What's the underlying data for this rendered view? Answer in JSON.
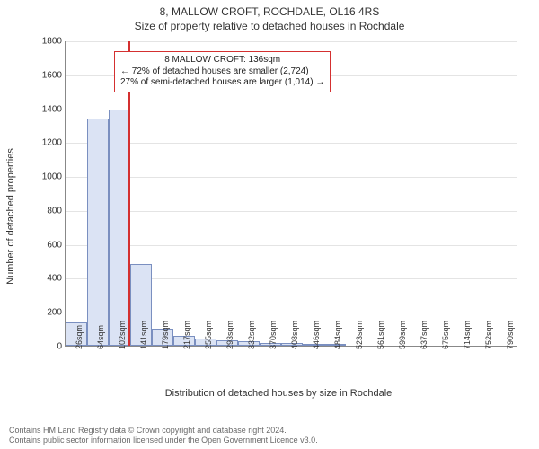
{
  "title": {
    "line1": "8, MALLOW CROFT, ROCHDALE, OL16 4RS",
    "line2": "Size of property relative to detached houses in Rochdale"
  },
  "chart": {
    "type": "histogram",
    "ylabel": "Number of detached properties",
    "xlabel": "Distribution of detached houses by size in Rochdale",
    "ylim": [
      0,
      1800
    ],
    "ytick_step": 200,
    "yticks": [
      0,
      200,
      400,
      600,
      800,
      1000,
      1200,
      1400,
      1600,
      1800
    ],
    "x_categories": [
      "26sqm",
      "64sqm",
      "102sqm",
      "141sqm",
      "179sqm",
      "217sqm",
      "255sqm",
      "293sqm",
      "332sqm",
      "370sqm",
      "408sqm",
      "446sqm",
      "484sqm",
      "523sqm",
      "561sqm",
      "599sqm",
      "637sqm",
      "675sqm",
      "714sqm",
      "752sqm",
      "790sqm"
    ],
    "values": [
      140,
      1340,
      1390,
      480,
      100,
      60,
      40,
      30,
      25,
      18,
      14,
      10,
      8,
      0,
      0,
      0,
      0,
      0,
      0,
      0,
      0
    ],
    "bar_fill": "#dbe3f4",
    "bar_stroke": "#7a8fc0",
    "grid_color": "#e4e4e4",
    "axis_color": "#888888",
    "background_color": "#ffffff",
    "label_fontsize": 11,
    "tick_fontsize": 10,
    "marker": {
      "bin_index": 2,
      "position_in_bin": 0.9,
      "color": "#d43030"
    },
    "callout": {
      "lines": [
        "8 MALLOW CROFT: 136sqm",
        "← 72% of detached houses are smaller (2,724)",
        "27% of semi-detached houses are larger (1,014) →"
      ],
      "border_color": "#d43030",
      "left_bin": 2,
      "top_y": 1740
    }
  },
  "footer": {
    "line1": "Contains HM Land Registry data © Crown copyright and database right 2024.",
    "line2": "Contains public sector information licensed under the Open Government Licence v3.0."
  }
}
